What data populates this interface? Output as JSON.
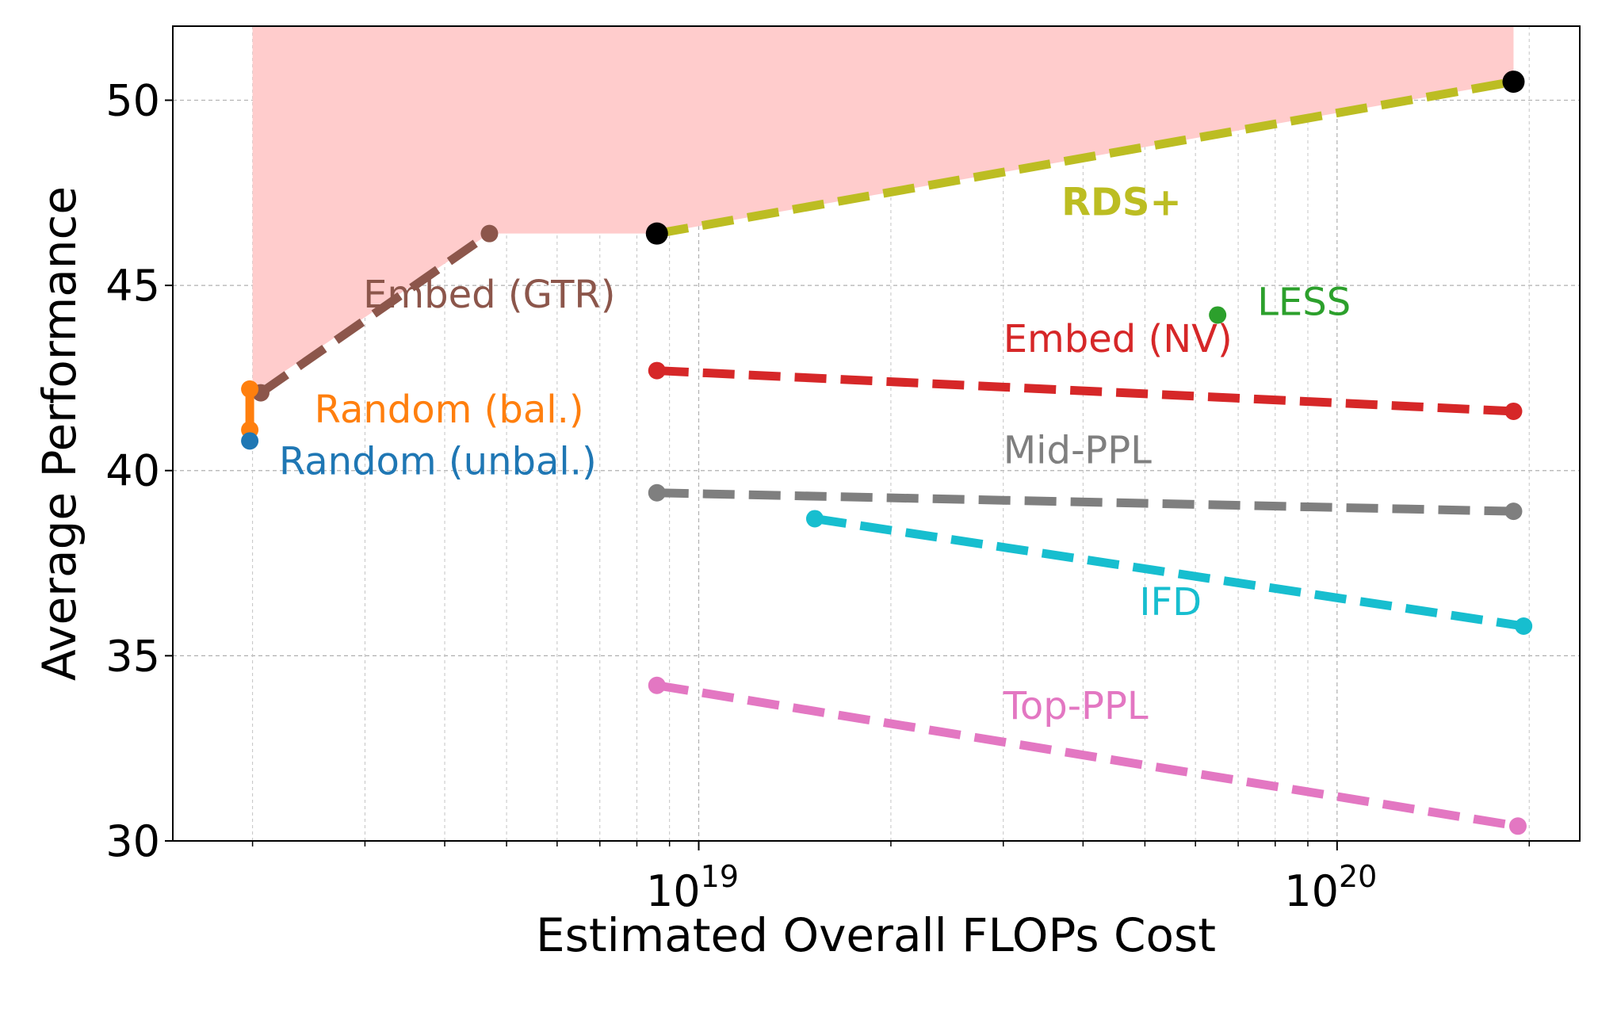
{
  "chart_data": {
    "type": "line",
    "x_scale": "log",
    "xlabel": "Estimated Overall FLOPs Cost",
    "ylabel": "Average Performance",
    "xlim": [
      1.5e+18,
      2.4e+20
    ],
    "ylim": [
      30,
      52
    ],
    "grid": true,
    "y_ticks": [
      30,
      35,
      40,
      45,
      50
    ],
    "x_major_ticks": [
      {
        "value": 1e+19,
        "base": "10",
        "exp": "19"
      },
      {
        "value": 1e+20,
        "base": "10",
        "exp": "20"
      }
    ],
    "x_minor_ticks": [
      2e+18,
      3e+18,
      4e+18,
      5e+18,
      6e+18,
      7e+18,
      8e+18,
      9e+18,
      2e+19,
      3e+19,
      4e+19,
      5e+19,
      6e+19,
      7e+19,
      8e+19,
      9e+19,
      2e+20
    ],
    "frontier": {
      "color": "#ffcccc",
      "points": [
        [
          2e+18,
          42.1
        ],
        [
          4.7e+18,
          46.4
        ],
        [
          8.6e+18,
          46.4
        ],
        [
          1.89e+20,
          50.5
        ]
      ]
    },
    "series": [
      {
        "name": "RDS+",
        "color": "#bcbd22",
        "style": "dashed",
        "bold": true,
        "points": [
          [
            8.6e+18,
            46.4
          ],
          [
            1.89e+20,
            50.5
          ]
        ],
        "marker_color": "#000000",
        "marker_size": 14
      },
      {
        "name": "Embed (GTR)",
        "color": "#8c564b",
        "style": "dashed",
        "points": [
          [
            2.06e+18,
            42.1
          ],
          [
            4.7e+18,
            46.4
          ]
        ]
      },
      {
        "name": "LESS",
        "color": "#2ca02c",
        "style": "none",
        "points": [
          [
            6.5e+19,
            44.2
          ]
        ]
      },
      {
        "name": "Embed (NV)",
        "color": "#d62728",
        "style": "dashed",
        "points": [
          [
            8.6e+18,
            42.7
          ],
          [
            1.89e+20,
            41.6
          ]
        ]
      },
      {
        "name": "Random (bal.)",
        "color": "#ff7f0e",
        "style": "solid",
        "points": [
          [
            1.98e+18,
            42.2
          ],
          [
            1.98e+18,
            41.1
          ]
        ]
      },
      {
        "name": "Random (unbal.)",
        "color": "#1f77b4",
        "style": "none",
        "points": [
          [
            1.98e+18,
            40.8
          ]
        ]
      },
      {
        "name": "Mid-PPL",
        "color": "#7f7f7f",
        "style": "dashed",
        "points": [
          [
            8.6e+18,
            39.4
          ],
          [
            1.89e+20,
            38.9
          ]
        ]
      },
      {
        "name": "IFD",
        "color": "#17becf",
        "style": "dashed",
        "points": [
          [
            1.52e+19,
            38.7
          ],
          [
            1.96e+20,
            35.8
          ]
        ]
      },
      {
        "name": "Top-PPL",
        "color": "#e377c2",
        "style": "dashed",
        "points": [
          [
            8.6e+18,
            34.2
          ],
          [
            1.92e+20,
            30.4
          ]
        ]
      }
    ],
    "annotations": [
      {
        "text": "RDS+",
        "series": "RDS+",
        "x": 3.7e+19,
        "y": 46.9
      },
      {
        "text": "Embed (GTR)",
        "series": "Embed (GTR)",
        "x": 2.98e+18,
        "y": 44.4
      },
      {
        "text": "LESS",
        "series": "LESS",
        "x": 7.5e+19,
        "y": 44.2
      },
      {
        "text": "Embed (NV)",
        "series": "Embed (NV)",
        "x": 3e+19,
        "y": 43.2
      },
      {
        "text": "Random (bal.)",
        "series": "Random (bal.)",
        "x": 2.5e+18,
        "y": 41.3
      },
      {
        "text": "Random (unbal.)",
        "series": "Random (unbal.)",
        "x": 2.2e+18,
        "y": 39.9
      },
      {
        "text": "Mid-PPL",
        "series": "Mid-PPL",
        "x": 3e+19,
        "y": 40.2
      },
      {
        "text": "IFD",
        "series": "IFD",
        "x": 4.9e+19,
        "y": 36.1
      },
      {
        "text": "Top-PPL",
        "series": "Top-PPL",
        "x": 3e+19,
        "y": 33.3
      }
    ]
  }
}
